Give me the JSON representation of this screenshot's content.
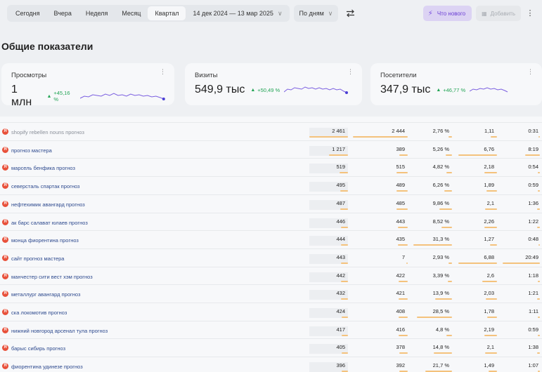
{
  "toolbar": {
    "periods": [
      "Сегодня",
      "Вчера",
      "Неделя",
      "Месяц",
      "Квартал"
    ],
    "active_period": "Квартал",
    "date_range": "14 дек 2024 — 13 мар 2025",
    "group_by": "По дням",
    "whats_new": "Что нового",
    "add_label": "Добавить",
    "icons": {
      "swap": "swap-icon",
      "more": "more-vert-icon",
      "bolt": "bolt-icon"
    }
  },
  "section_title": "Общие показатели",
  "metrics": [
    {
      "label": "Просмотры",
      "value": "1 млн",
      "delta": "+45,16 %"
    },
    {
      "label": "Визиты",
      "value": "549,9 тыс",
      "delta": "+50,49 %"
    },
    {
      "label": "Посетители",
      "value": "347,9 тыс",
      "delta": "+46,77 %"
    }
  ],
  "colors": {
    "accent": "#6b3fd4",
    "positive": "#23a455",
    "bar": "#f4c27c",
    "engine_icon": "#e8503a"
  },
  "rows": [
    {
      "label": "shopify rebellen nouns прогноз",
      "a": "2 461",
      "b": "2 444",
      "c": "2,76 %",
      "d": "1,11",
      "e": "0:31",
      "bars": [
        1.0,
        1.0,
        0.09,
        0.16,
        0.03
      ],
      "gray": true
    },
    {
      "label": "прогноз мастера",
      "a": "1 217",
      "b": "389",
      "c": "5,26 %",
      "d": "6,76",
      "e": "8:19",
      "bars": [
        0.5,
        0.16,
        0.17,
        1.0,
        0.4
      ],
      "gray": false
    },
    {
      "label": "марсель бенфика прогноз",
      "a": "519",
      "b": "515",
      "c": "4,82 %",
      "d": "2,18",
      "e": "0:54",
      "bars": [
        0.21,
        0.21,
        0.15,
        0.32,
        0.05
      ],
      "gray": false
    },
    {
      "label": "северсталь спартак прогноз",
      "a": "495",
      "b": "489",
      "c": "6,26 %",
      "d": "1,89",
      "e": "0:59",
      "bars": [
        0.2,
        0.2,
        0.2,
        0.28,
        0.05
      ],
      "gray": false
    },
    {
      "label": "нефтехимик авангард прогноз",
      "a": "487",
      "b": "485",
      "c": "9,86 %",
      "d": "2,1",
      "e": "1:36",
      "bars": [
        0.2,
        0.2,
        0.32,
        0.31,
        0.08
      ],
      "gray": false
    },
    {
      "label": "ак барс салават юлаев прогноз",
      "a": "446",
      "b": "443",
      "c": "8,52 %",
      "d": "2,26",
      "e": "1:22",
      "bars": [
        0.18,
        0.18,
        0.27,
        0.33,
        0.07
      ],
      "gray": false
    },
    {
      "label": "монца фиорентина прогноз",
      "a": "444",
      "b": "435",
      "c": "31,3 %",
      "d": "1,27",
      "e": "0:48",
      "bars": [
        0.18,
        0.18,
        1.0,
        0.19,
        0.04
      ],
      "gray": false
    },
    {
      "label": "сайт прогноз мастера",
      "a": "443",
      "b": "7",
      "c": "2,93 %",
      "d": "6,88",
      "e": "20:49",
      "bars": [
        0.18,
        0.01,
        0.09,
        1.0,
        1.0
      ],
      "gray": false
    },
    {
      "label": "манчестер сити вест хэм прогноз",
      "a": "442",
      "b": "422",
      "c": "3,39 %",
      "d": "2,6",
      "e": "1:18",
      "bars": [
        0.18,
        0.17,
        0.11,
        0.38,
        0.06
      ],
      "gray": false
    },
    {
      "label": "металлург авангард прогноз",
      "a": "432",
      "b": "421",
      "c": "13,9 %",
      "d": "2,03",
      "e": "1:21",
      "bars": [
        0.18,
        0.17,
        0.44,
        0.3,
        0.07
      ],
      "gray": false
    },
    {
      "label": "ска локомотив прогноз",
      "a": "424",
      "b": "408",
      "c": "28,5 %",
      "d": "1,78",
      "e": "1:11",
      "bars": [
        0.17,
        0.17,
        0.91,
        0.26,
        0.06
      ],
      "gray": false
    },
    {
      "label": "нижний новгород арсенал тула прогноз",
      "a": "417",
      "b": "416",
      "c": "4,8 %",
      "d": "2,19",
      "e": "0:59",
      "bars": [
        0.17,
        0.17,
        0.15,
        0.32,
        0.05
      ],
      "gray": false
    },
    {
      "label": "барыс сибирь прогноз",
      "a": "405",
      "b": "378",
      "c": "14,8 %",
      "d": "2,1",
      "e": "1:38",
      "bars": [
        0.16,
        0.15,
        0.47,
        0.31,
        0.08
      ],
      "gray": false
    },
    {
      "label": "фиорентина удинезе прогноз",
      "a": "396",
      "b": "392",
      "c": "21,7 %",
      "d": "1,49",
      "e": "1:07",
      "bars": [
        0.16,
        0.16,
        0.69,
        0.22,
        0.05
      ],
      "gray": false
    }
  ]
}
